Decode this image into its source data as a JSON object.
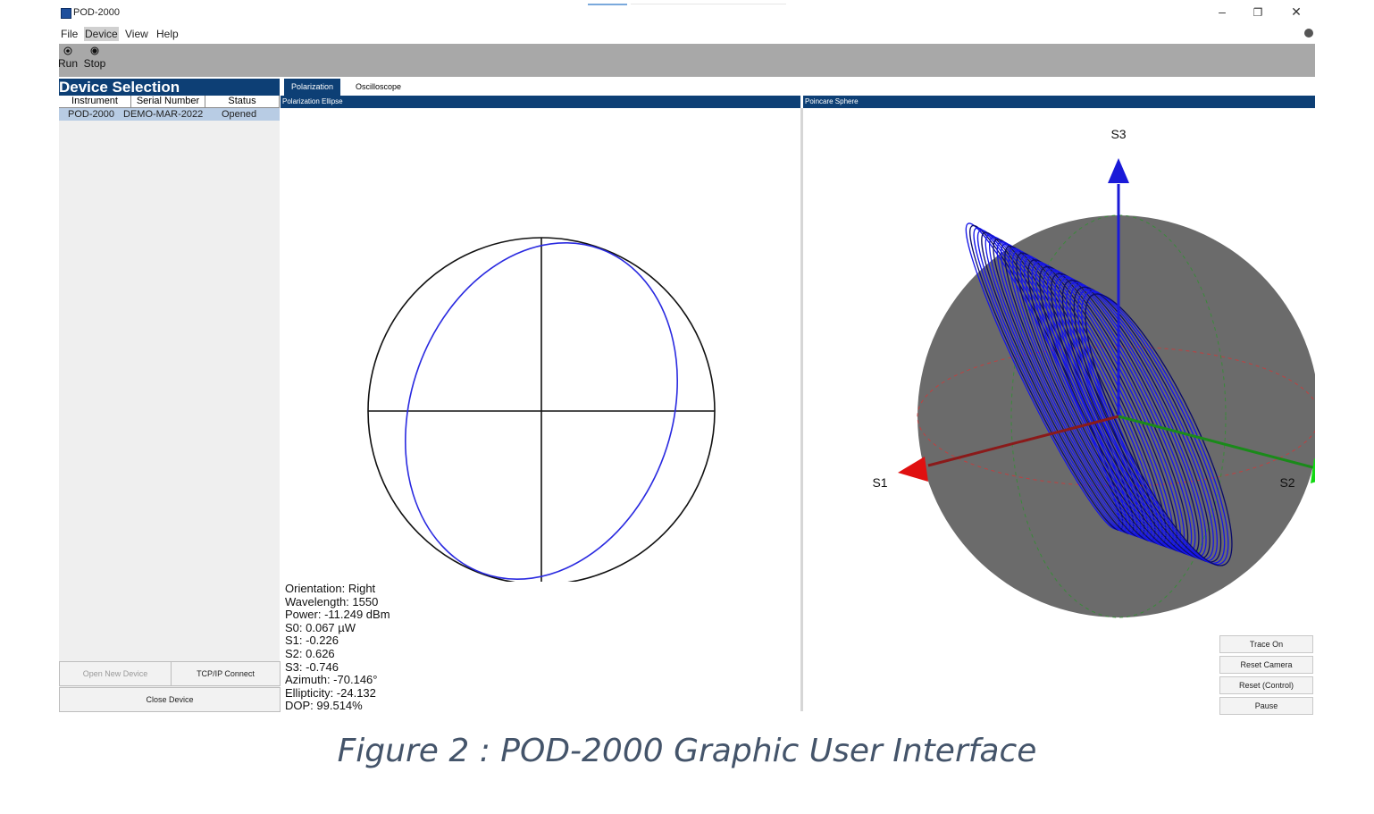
{
  "window": {
    "title": "POD-2000",
    "minimize_glyph": "–",
    "restore_glyph": "❐",
    "close_glyph": "✕"
  },
  "menu": {
    "items": [
      {
        "label": "File"
      },
      {
        "label": "Device",
        "active": true
      },
      {
        "label": "View"
      },
      {
        "label": "Help"
      }
    ]
  },
  "toolbar": {
    "run_label": "Run",
    "stop_label": "Stop",
    "run_icon": "radio-dot-icon",
    "stop_icon": "radio-dot-filled-icon"
  },
  "device_selection": {
    "title": "Device Selection",
    "columns": [
      "Instrument",
      "Serial Number",
      "Status"
    ],
    "rows": [
      {
        "instrument": "POD-2000",
        "serial": "DEMO-MAR-2022",
        "status": "Opened"
      }
    ],
    "open_new_label": "Open New Device",
    "tcpip_label": "TCP/IP Connect",
    "close_label": "Close Device"
  },
  "tabs": [
    {
      "label": "Polarization",
      "active": true
    },
    {
      "label": "Oscilloscope",
      "active": false
    }
  ],
  "ellipse_panel": {
    "title": "Polarization Ellipse",
    "readout": [
      "Orientation: Right",
      "Wavelength: 1550",
      "Power: -11.249 dBm",
      "S0: 0.067 µW",
      "S1: -0.226",
      "S2: 0.626",
      "S3: -0.746",
      "Azimuth: -70.146°",
      "Ellipticity: -24.132",
      "DOP: 99.514%"
    ]
  },
  "sphere_panel": {
    "title": "Poincare Sphere",
    "axes": {
      "s1": "S1",
      "s2": "S2",
      "s3": "S3"
    },
    "buttons": [
      "Trace On",
      "Reset Camera",
      "Reset (Control)",
      "Pause"
    ]
  },
  "colors": {
    "accent": "#0d3f75",
    "trace": "#1515e8",
    "sphere": "#6b6b6b",
    "toolbar": "#a8a8a8",
    "selected_row": "#b8cce4"
  },
  "caption": "Figure 2 : POD-2000 Graphic User Interface"
}
